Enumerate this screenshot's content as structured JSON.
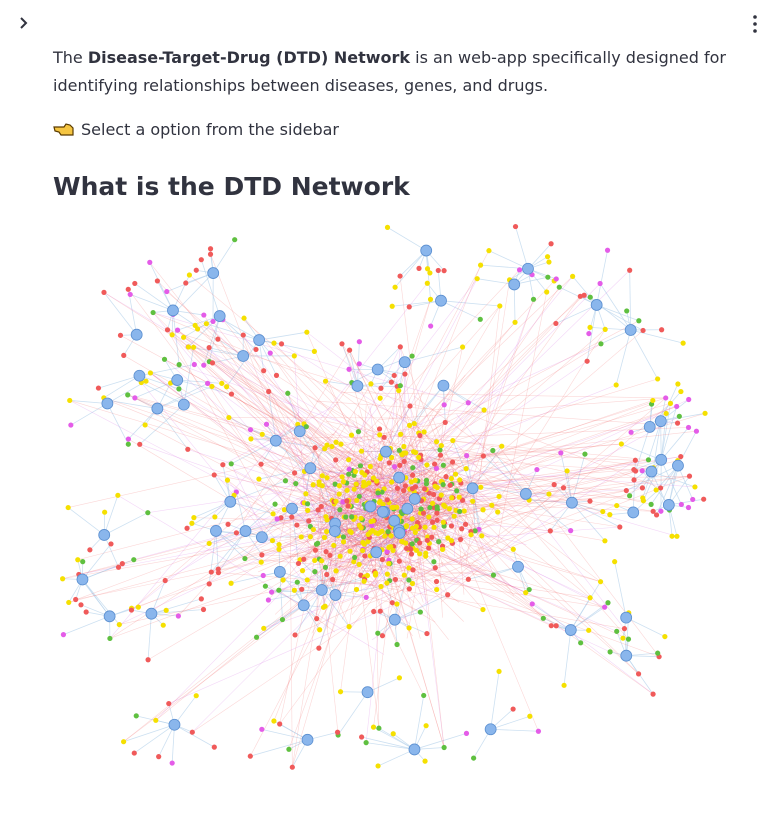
{
  "intro": {
    "prefix": "The ",
    "bold": "Disease-Target-Drug (DTD) Network",
    "suffix": " is an web-app specifically designed for identifying relationships between diseases, genes, and drugs."
  },
  "hint": "Select a option from the sidebar",
  "heading": "What is the DTD Network"
}
